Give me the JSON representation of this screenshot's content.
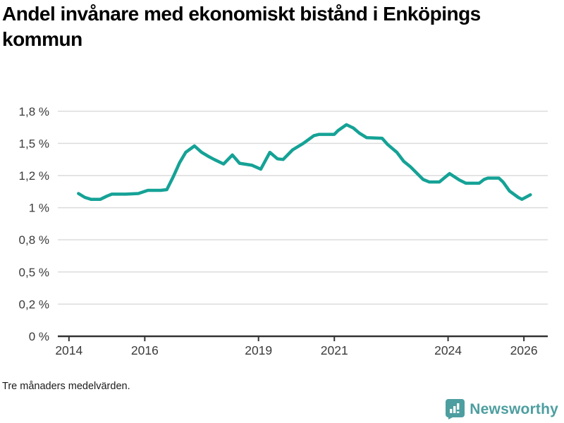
{
  "header": {
    "title": "Andel invånare med ekonomiskt bistånd i Enköpings kommun"
  },
  "footnote": "Tre månaders medelvärden.",
  "branding": {
    "name": "Newsworthy"
  },
  "colors": {
    "line": "#15A296",
    "grid": "#dcdcdc",
    "axis": "#333333",
    "tick_label": "#3b3b3b",
    "title": "#000000",
    "logo": "#4D9EA0",
    "background": "#ffffff"
  },
  "chart_data": {
    "type": "line",
    "title": "Andel invånare med ekonomiskt bistånd i Enköpings kommun",
    "xlabel": "",
    "ylabel": "",
    "unit": "%",
    "grid": true,
    "legend": "none",
    "xlim": [
      2013.706,
      2026.63
    ],
    "ylim": [
      0,
      1.82
    ],
    "x_ticks": [
      {
        "value": 2014,
        "label": "2014"
      },
      {
        "value": 2016,
        "label": "2016"
      },
      {
        "value": 2019,
        "label": "2019"
      },
      {
        "value": 2021,
        "label": "2021"
      },
      {
        "value": 2024,
        "label": "2024"
      },
      {
        "value": 2026,
        "label": "2026"
      }
    ],
    "y_ticks": [
      {
        "value": 0,
        "label": "0 %"
      },
      {
        "value": 0.25,
        "label": "0,2 %"
      },
      {
        "value": 0.5,
        "label": "0,5 %"
      },
      {
        "value": 0.75,
        "label": "0,8 %"
      },
      {
        "value": 1.0,
        "label": "1 %"
      },
      {
        "value": 1.25,
        "label": "1,2 %"
      },
      {
        "value": 1.5,
        "label": "1,5 %"
      },
      {
        "value": 1.75,
        "label": "1,8 %"
      }
    ],
    "series": [
      {
        "name": "Andel invånare med ekonomiskt bistånd",
        "points": [
          [
            2014.25,
            1.11
          ],
          [
            2014.42,
            1.08
          ],
          [
            2014.58,
            1.065
          ],
          [
            2014.83,
            1.065
          ],
          [
            2015.0,
            1.09
          ],
          [
            2015.13,
            1.105
          ],
          [
            2015.5,
            1.105
          ],
          [
            2015.83,
            1.11
          ],
          [
            2016.08,
            1.135
          ],
          [
            2016.42,
            1.135
          ],
          [
            2016.58,
            1.14
          ],
          [
            2016.75,
            1.24
          ],
          [
            2016.92,
            1.35
          ],
          [
            2017.08,
            1.43
          ],
          [
            2017.31,
            1.48
          ],
          [
            2017.5,
            1.43
          ],
          [
            2017.67,
            1.4
          ],
          [
            2017.83,
            1.375
          ],
          [
            2018.08,
            1.34
          ],
          [
            2018.31,
            1.41
          ],
          [
            2018.5,
            1.345
          ],
          [
            2018.83,
            1.33
          ],
          [
            2019.06,
            1.3
          ],
          [
            2019.3,
            1.43
          ],
          [
            2019.5,
            1.38
          ],
          [
            2019.65,
            1.375
          ],
          [
            2019.9,
            1.45
          ],
          [
            2020.18,
            1.5
          ],
          [
            2020.46,
            1.56
          ],
          [
            2020.6,
            1.57
          ],
          [
            2021.0,
            1.57
          ],
          [
            2021.1,
            1.6
          ],
          [
            2021.32,
            1.645
          ],
          [
            2021.5,
            1.62
          ],
          [
            2021.66,
            1.58
          ],
          [
            2021.85,
            1.545
          ],
          [
            2022.26,
            1.54
          ],
          [
            2022.41,
            1.49
          ],
          [
            2022.65,
            1.43
          ],
          [
            2022.83,
            1.36
          ],
          [
            2023.0,
            1.32
          ],
          [
            2023.34,
            1.22
          ],
          [
            2023.5,
            1.2
          ],
          [
            2023.77,
            1.2
          ],
          [
            2024.04,
            1.265
          ],
          [
            2024.3,
            1.215
          ],
          [
            2024.47,
            1.19
          ],
          [
            2024.82,
            1.19
          ],
          [
            2024.95,
            1.22
          ],
          [
            2025.05,
            1.23
          ],
          [
            2025.34,
            1.23
          ],
          [
            2025.45,
            1.2
          ],
          [
            2025.62,
            1.13
          ],
          [
            2025.85,
            1.08
          ],
          [
            2025.95,
            1.065
          ],
          [
            2026.17,
            1.1
          ]
        ]
      }
    ]
  }
}
